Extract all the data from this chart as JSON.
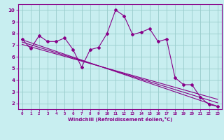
{
  "xlabel": "Windchill (Refroidissement éolien,°C)",
  "xlim": [
    -0.5,
    23.5
  ],
  "ylim": [
    1.5,
    10.5
  ],
  "xticks": [
    0,
    1,
    2,
    3,
    4,
    5,
    6,
    7,
    8,
    9,
    10,
    11,
    12,
    13,
    14,
    15,
    16,
    17,
    18,
    19,
    20,
    21,
    22,
    23
  ],
  "yticks": [
    2,
    3,
    4,
    5,
    6,
    7,
    8,
    9,
    10
  ],
  "bg_color": "#c8eef0",
  "line_color": "#880088",
  "grid_color": "#99cccc",
  "main_x": [
    0,
    1,
    2,
    3,
    4,
    5,
    6,
    7,
    8,
    9,
    10,
    11,
    12,
    13,
    14,
    15,
    16,
    17,
    18,
    19,
    20,
    21,
    22,
    23
  ],
  "main_y": [
    7.5,
    6.7,
    7.8,
    7.3,
    7.3,
    7.6,
    6.6,
    5.1,
    6.6,
    6.8,
    8.0,
    10.0,
    9.5,
    7.9,
    8.1,
    8.4,
    7.3,
    7.5,
    4.2,
    3.6,
    3.6,
    2.5,
    1.9,
    1.75
  ],
  "trend1_x": [
    0,
    23
  ],
  "trend1_y": [
    7.45,
    1.75
  ],
  "trend2_x": [
    0,
    23
  ],
  "trend2_y": [
    7.25,
    2.05
  ],
  "trend3_x": [
    0,
    23
  ],
  "trend3_y": [
    7.05,
    2.35
  ]
}
